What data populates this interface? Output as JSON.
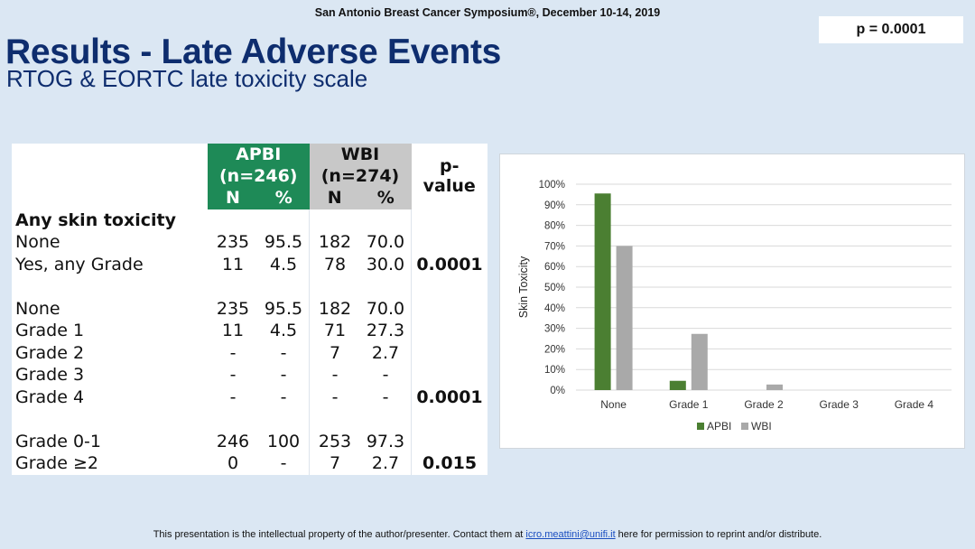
{
  "header": "San Antonio Breast Cancer Symposium®, December 10-14, 2019",
  "title": "Results - Late Adverse Events",
  "subtitle": "RTOG & EORTC late toxicity scale",
  "table": {
    "apbi_label": "APBI",
    "apbi_n": "(n=246)",
    "wbi_label": "WBI",
    "wbi_n": "(n=274)",
    "col_n": "N",
    "col_pct": "%",
    "pvalue_header": "p-value",
    "rows": [
      {
        "label": "Any skin toxicity",
        "bold": true,
        "a_n": "",
        "a_pct": "",
        "w_n": "",
        "w_pct": "",
        "p": ""
      },
      {
        "label": "None",
        "a_n": "235",
        "a_pct": "95.5",
        "w_n": "182",
        "w_pct": "70.0",
        "p": ""
      },
      {
        "label": "Yes, any Grade",
        "a_n": "11",
        "a_pct": "4.5",
        "w_n": "78",
        "w_pct": "30.0",
        "p": "0.0001"
      },
      {
        "gap": true
      },
      {
        "label": "None",
        "a_n": "235",
        "a_pct": "95.5",
        "w_n": "182",
        "w_pct": "70.0",
        "p": ""
      },
      {
        "label": "Grade 1",
        "a_n": "11",
        "a_pct": "4.5",
        "w_n": "71",
        "w_pct": "27.3",
        "p": ""
      },
      {
        "label": "Grade 2",
        "a_n": "-",
        "a_pct": "-",
        "w_n": "7",
        "w_pct": "2.7",
        "p": ""
      },
      {
        "label": "Grade 3",
        "a_n": "-",
        "a_pct": "-",
        "w_n": "-",
        "w_pct": "-",
        "p": ""
      },
      {
        "label": "Grade 4",
        "a_n": "-",
        "a_pct": "-",
        "w_n": "-",
        "w_pct": "-",
        "p": "0.0001"
      },
      {
        "gap": true
      },
      {
        "label": "Grade 0-1",
        "a_n": "246",
        "a_pct": "100",
        "w_n": "253",
        "w_pct": "97.3",
        "p": ""
      },
      {
        "label": "Grade ≥2",
        "a_n": "0",
        "a_pct": "-",
        "w_n": "7",
        "w_pct": "2.7",
        "p": "0.015"
      }
    ]
  },
  "chart_data": {
    "type": "bar",
    "categories": [
      "None",
      "Grade 1",
      "Grade 2",
      "Grade 3",
      "Grade 4"
    ],
    "series": [
      {
        "name": "APBI",
        "values": [
          95.5,
          4.5,
          0,
          0,
          0
        ],
        "color": "#4b7f32"
      },
      {
        "name": "WBI",
        "values": [
          70.0,
          27.3,
          2.7,
          0,
          0
        ],
        "color": "#a9a9a9"
      }
    ],
    "ylabel": "Skin Toxicity",
    "ylim": [
      0,
      100
    ],
    "yticks": [
      "0%",
      "10%",
      "20%",
      "30%",
      "40%",
      "50%",
      "60%",
      "70%",
      "80%",
      "90%",
      "100%"
    ],
    "legend": "bottom",
    "annotation": "p = 0.0001"
  },
  "colors": {
    "title": "#0e2d6e",
    "apbi_header": "#1e8a57",
    "wbi_header": "#c8c8c8",
    "background": "#dbe7f3"
  },
  "footer": {
    "before": "This presentation is the intellectual property of the author/presenter. Contact them at ",
    "email": "icro.meattini@unifi.it",
    "after": " here for permission to reprint and/or distribute."
  }
}
